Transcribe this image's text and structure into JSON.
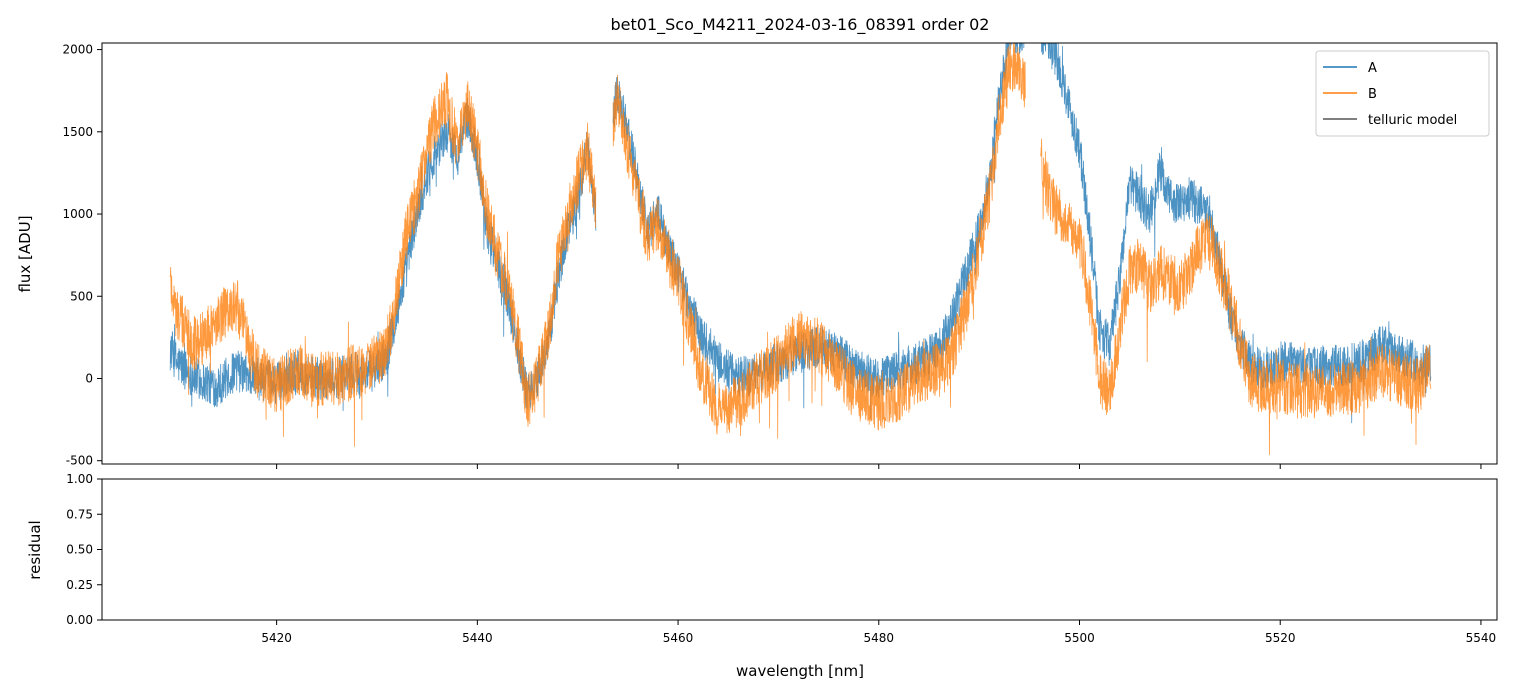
{
  "title": "bet01_Sco_M4211_2024-03-16_08391  order 02",
  "colors": {
    "A": "#1f77b4",
    "B": "#ff7f0e",
    "telluric": "#555555"
  },
  "chart_data": [
    {
      "type": "line",
      "panel": "top",
      "ylabel": "flux [ADU]",
      "xlim": [
        5402.6,
        5541.6
      ],
      "ylim": [
        -520,
        2040
      ],
      "yticks": [
        -500,
        0,
        500,
        1000,
        1500,
        2000
      ],
      "xticks": [
        5420,
        5440,
        5460,
        5480,
        5500,
        5520,
        5540
      ],
      "grid": false,
      "legend": {
        "position": "top-right",
        "entries": [
          "A",
          "B",
          "telluric model"
        ]
      },
      "series": [
        {
          "name": "A",
          "color": "#1f77b4",
          "noise": 130,
          "x": [
            5409.4,
            5410,
            5412,
            5414,
            5416,
            5418,
            5420,
            5422,
            5424,
            5426,
            5428,
            5430,
            5431,
            5432,
            5433,
            5434,
            5435,
            5436,
            5437,
            5438,
            5439,
            5440,
            5441,
            5442,
            5443,
            5444,
            5445,
            5446,
            5447,
            5448,
            5449,
            5450,
            5451,
            5452,
            5453.9,
            5455,
            5456,
            5457,
            5458,
            5459,
            5460,
            5462,
            5464,
            5466,
            5468,
            5470,
            5472,
            5474,
            5476,
            5478,
            5480,
            5482,
            5484,
            5486,
            5487,
            5488,
            5489,
            5490,
            5491,
            5492,
            5493,
            5494,
            5496.2,
            5497,
            5498,
            5499,
            5500,
            5501,
            5502,
            5503,
            5504,
            5505,
            5506,
            5507,
            5508,
            5509,
            5510,
            5511,
            5512,
            5513,
            5514,
            5515,
            5516,
            5517,
            5518,
            5520,
            5522,
            5524,
            5526,
            5528,
            5530,
            5532,
            5534,
            5535
          ],
          "y": [
            200,
            100,
            0,
            -50,
            50,
            0,
            -30,
            50,
            0,
            0,
            30,
            50,
            150,
            400,
            700,
            1000,
            1250,
            1400,
            1500,
            1350,
            1600,
            1350,
            900,
            700,
            500,
            200,
            -100,
            0,
            200,
            600,
            900,
            1100,
            1400,
            900,
            1750,
            1500,
            1200,
            900,
            1000,
            800,
            650,
            300,
            100,
            0,
            30,
            100,
            150,
            200,
            150,
            50,
            0,
            50,
            100,
            200,
            300,
            500,
            700,
            900,
            1200,
            1700,
            2100,
            2100,
            2100,
            2050,
            1900,
            1650,
            1400,
            900,
            300,
            200,
            600,
            1200,
            1100,
            1000,
            1250,
            1100,
            1050,
            1100,
            1050,
            1000,
            700,
            400,
            200,
            100,
            50,
            100,
            80,
            70,
            80,
            100,
            200,
            150,
            80,
            100
          ],
          "gaps": [
            [
              5451.8,
              5453.5
            ],
            [
              5494.6,
              5496.1
            ]
          ]
        },
        {
          "name": "B",
          "color": "#ff7f0e",
          "noise": 170,
          "x": [
            5409.4,
            5410,
            5412,
            5414,
            5416,
            5418,
            5420,
            5422,
            5424,
            5426,
            5428,
            5430,
            5431,
            5432,
            5433,
            5434,
            5435,
            5436,
            5437,
            5438,
            5439,
            5440,
            5441,
            5442,
            5443,
            5444,
            5445,
            5446,
            5447,
            5448,
            5449,
            5450,
            5451,
            5452,
            5453.9,
            5455,
            5456,
            5457,
            5458,
            5459,
            5460,
            5462,
            5464,
            5466,
            5468,
            5470,
            5472,
            5474,
            5476,
            5478,
            5480,
            5482,
            5484,
            5486,
            5487,
            5488,
            5489,
            5490,
            5491,
            5492,
            5493,
            5494,
            5496.2,
            5497,
            5498,
            5499,
            5500,
            5501,
            5502,
            5503,
            5504,
            5505,
            5506,
            5507,
            5508,
            5509,
            5510,
            5511,
            5512,
            5513,
            5514,
            5515,
            5516,
            5517,
            5518,
            5520,
            5522,
            5524,
            5526,
            5528,
            5530,
            5532,
            5534,
            5535
          ],
          "y": [
            600,
            400,
            200,
            350,
            450,
            50,
            -50,
            50,
            0,
            0,
            50,
            100,
            200,
            500,
            900,
            1100,
            1400,
            1600,
            1700,
            1400,
            1650,
            1400,
            1000,
            750,
            550,
            250,
            -150,
            0,
            250,
            700,
            1000,
            1200,
            1400,
            900,
            1700,
            1400,
            1100,
            850,
            950,
            750,
            600,
            100,
            -200,
            -150,
            0,
            100,
            250,
            200,
            50,
            -100,
            -150,
            -100,
            0,
            50,
            100,
            300,
            500,
            800,
            1100,
            1600,
            1900,
            1900,
            1350,
            1100,
            1000,
            950,
            850,
            500,
            0,
            -100,
            300,
            650,
            700,
            550,
            650,
            600,
            550,
            650,
            800,
            850,
            650,
            500,
            200,
            0,
            -50,
            -50,
            -80,
            -70,
            -60,
            -50,
            50,
            0,
            -50,
            100
          ],
          "gaps": [
            [
              5451.8,
              5453.5
            ],
            [
              5494.6,
              5496.1
            ]
          ]
        }
      ]
    },
    {
      "type": "line",
      "panel": "bottom",
      "ylabel": "residual",
      "xlabel": "wavelength [nm]",
      "xlim": [
        5402.6,
        5541.6
      ],
      "ylim": [
        0,
        1
      ],
      "yticks": [
        "0.00",
        "0.25",
        "0.50",
        "0.75",
        "1.00"
      ],
      "xticks": [
        "5420",
        "5440",
        "5460",
        "5480",
        "5500",
        "5520",
        "5540"
      ],
      "series": []
    }
  ]
}
